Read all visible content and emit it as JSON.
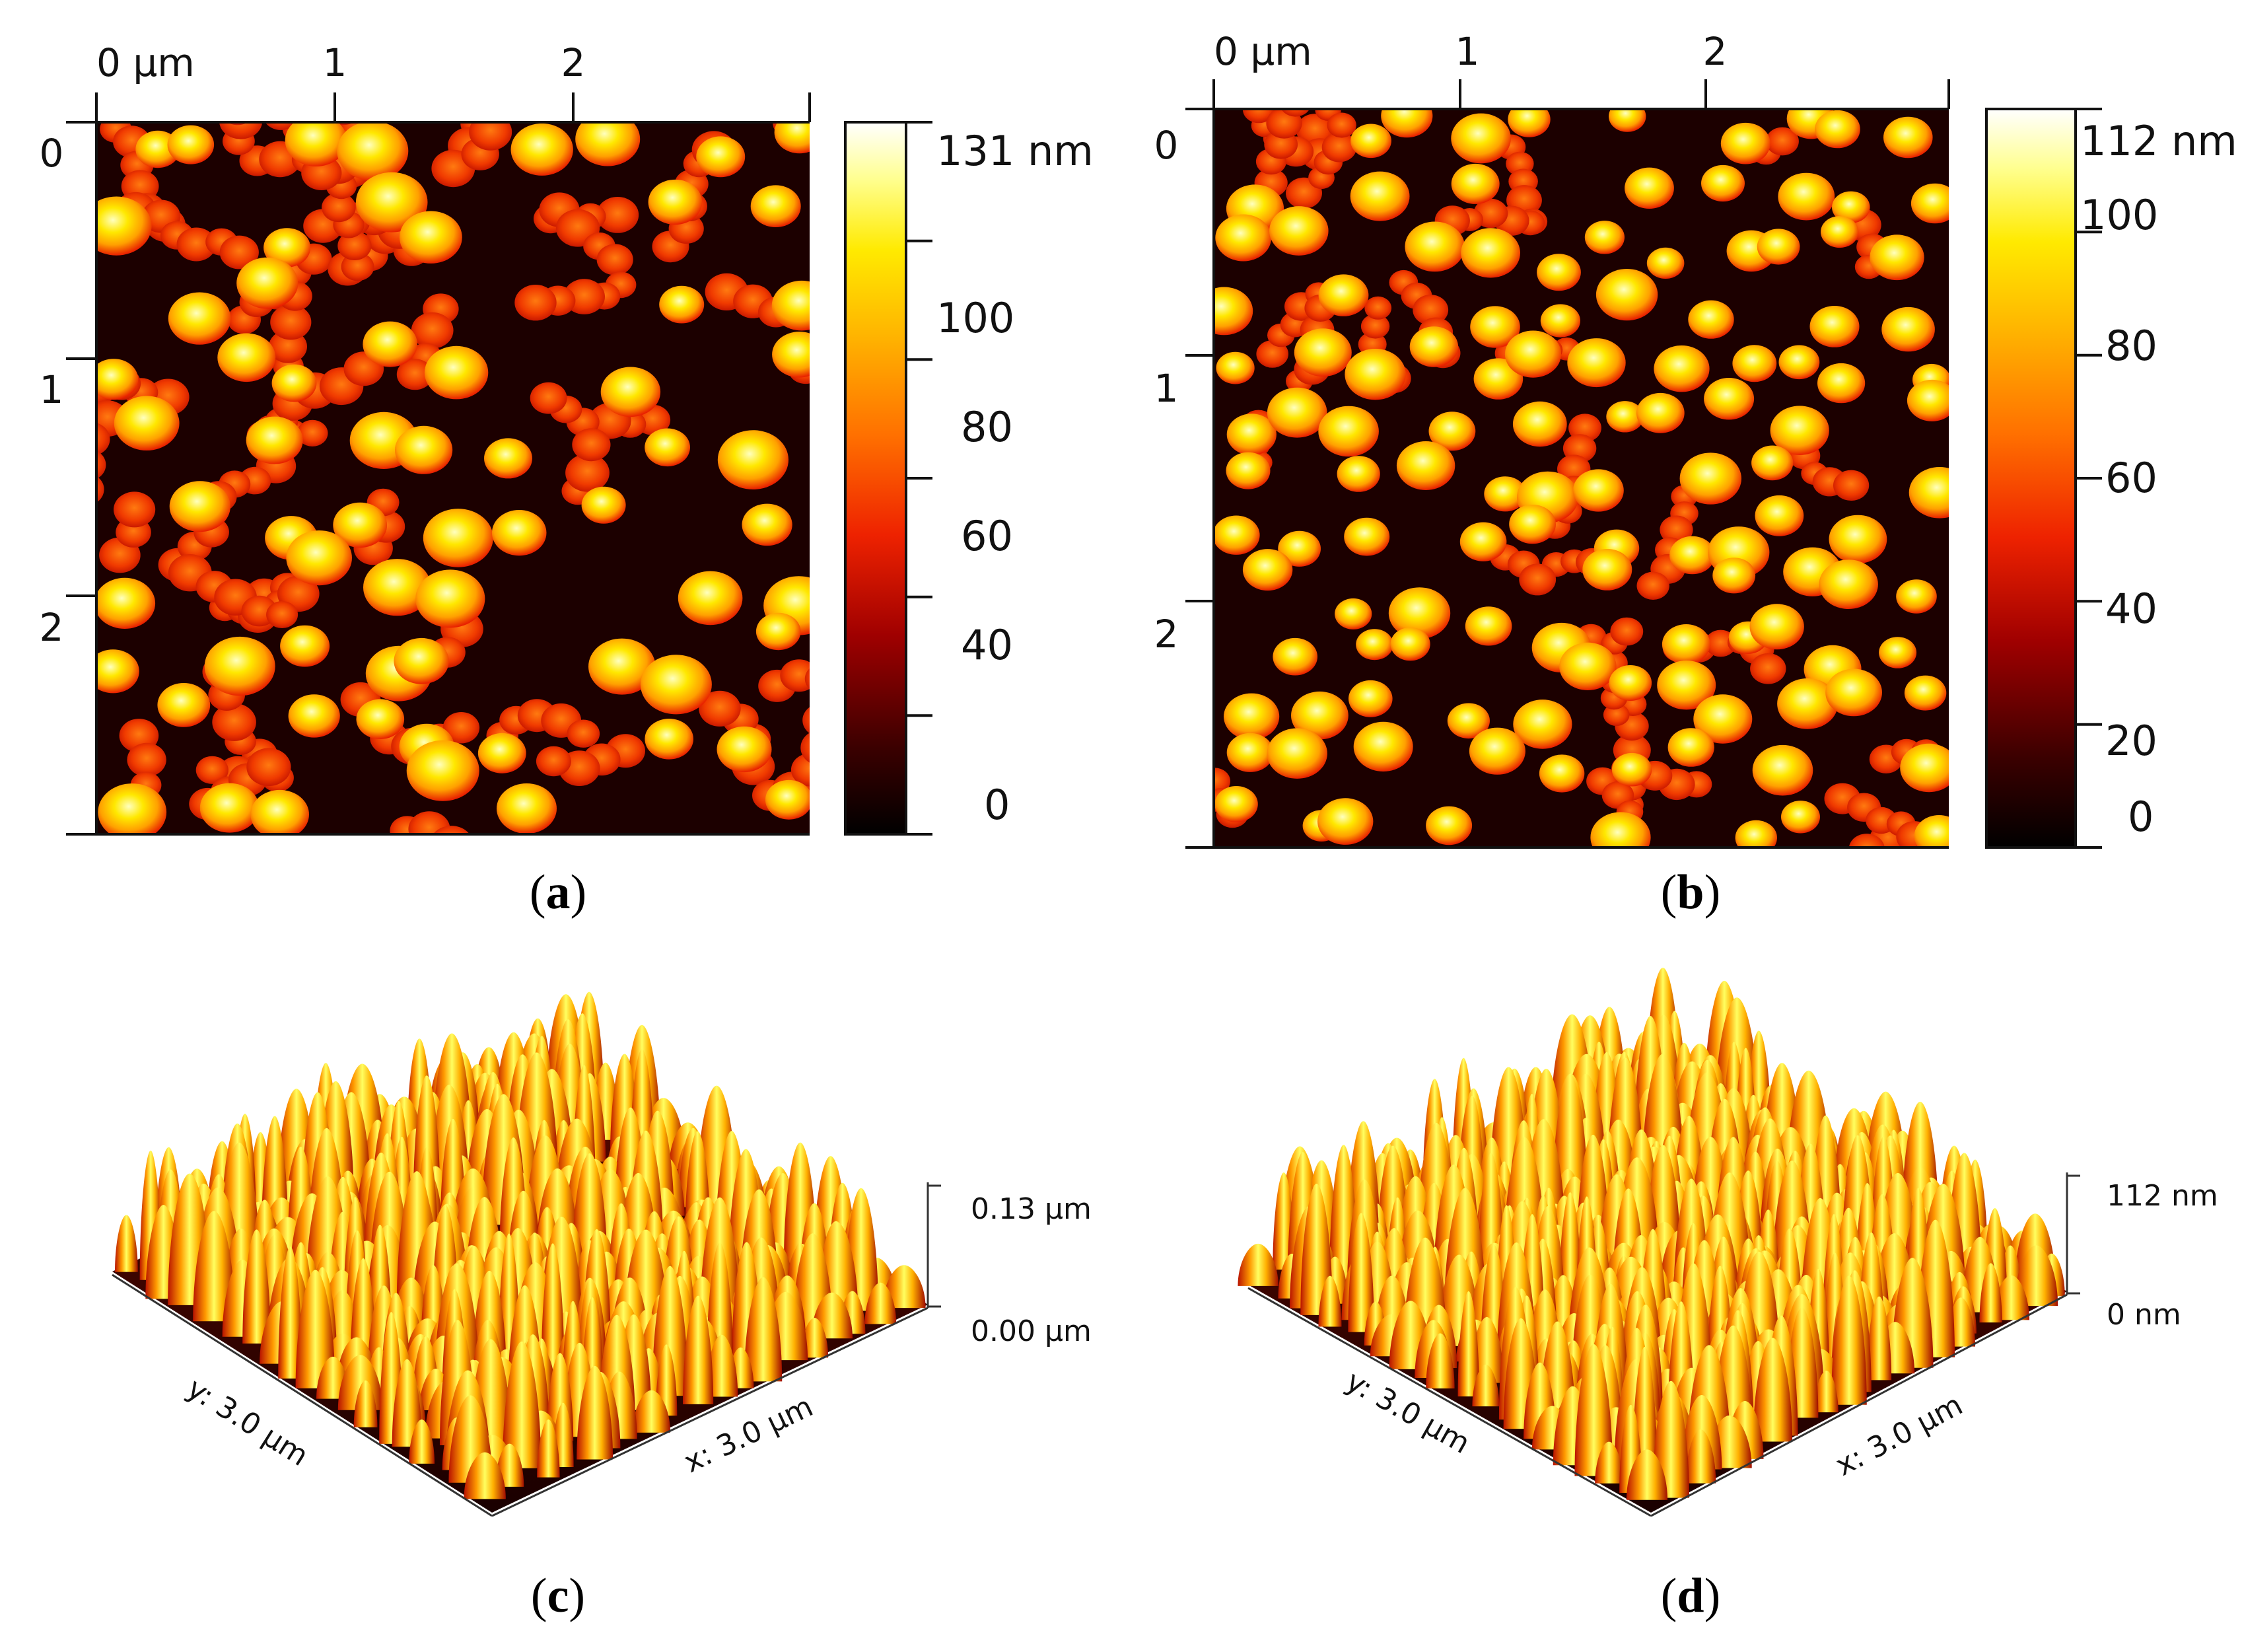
{
  "colors": {
    "background": "#ffffff",
    "axis": "#111111",
    "heat_map": [
      "#000000",
      "#3a0000",
      "#8a0000",
      "#e01000",
      "#ff5a00",
      "#ff9f00",
      "#ffe000",
      "#ffff70",
      "#ffffff"
    ]
  },
  "panels": [
    {
      "id": "a",
      "caption_letter": "a",
      "x_ticks": [
        "0 μm",
        "1",
        "2"
      ],
      "y_ticks": [
        "0",
        "1",
        "2"
      ],
      "scale_max_label": "131 nm",
      "scale_ticks": [
        "100",
        "80",
        "60",
        "40",
        "0"
      ],
      "height_max_nm": 131
    },
    {
      "id": "b",
      "caption_letter": "b",
      "x_ticks": [
        "0 μm",
        "1",
        "2"
      ],
      "y_ticks": [
        "0",
        "1",
        "2"
      ],
      "scale_max_label": "112 nm",
      "scale_ticks": [
        "100",
        "80",
        "60",
        "40",
        "20",
        "0"
      ],
      "height_max_nm": 112
    },
    {
      "id": "c",
      "caption_letter": "c",
      "z_top_label": "0.13 μm",
      "z_bottom_label": "0.00 μm",
      "y_axis_label": "y: 3.0 μm",
      "x_axis_label": "x: 3.0 μm"
    },
    {
      "id": "d",
      "caption_letter": "d",
      "z_top_label": "112 nm",
      "z_bottom_label": "0 nm",
      "y_axis_label": "y: 3.0 μm",
      "x_axis_label": "x: 3.0 μm"
    }
  ]
}
